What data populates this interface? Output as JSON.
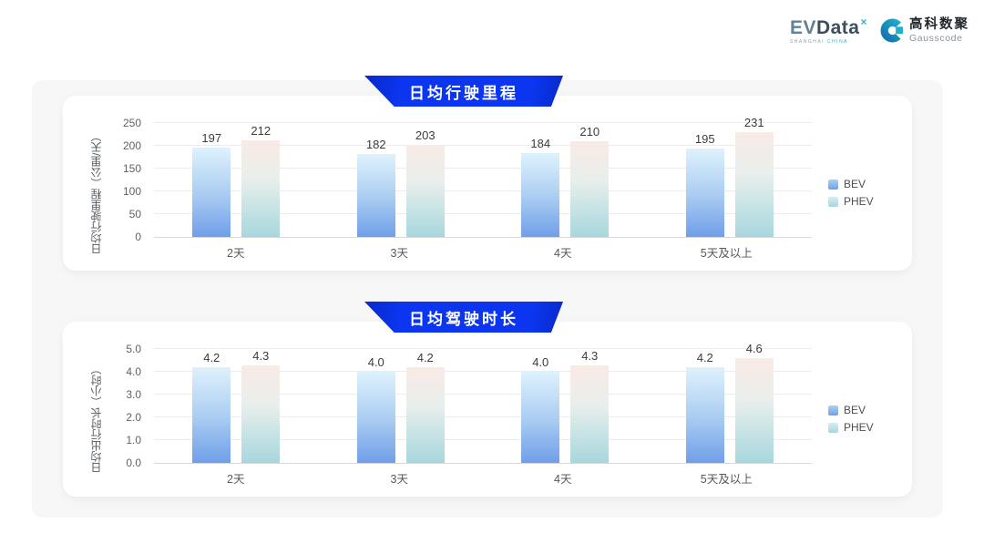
{
  "header": {
    "evdata": {
      "ev": "EV",
      "data": "Data",
      "sup": "×",
      "tagline_left": "SHANGHAI",
      "tagline_right": "CHINA"
    },
    "gausscode": {
      "cn": "高科数聚",
      "en": "Gausscode"
    }
  },
  "colors": {
    "banner_blue": "#0b35ee",
    "panel_gray": "#f7f7f8",
    "bev_gradient_top": "#def2fc",
    "bev_gradient_bottom": "#6f9fe9",
    "phev_gradient_top": "#f9eae5",
    "phev_gradient_bottom": "#a7d7de"
  },
  "chart_data": [
    {
      "type": "bar",
      "title": "日均行驶里程",
      "ylabel": "日均行驶里程（公里/天）",
      "xlabel": "",
      "categories": [
        "2天",
        "3天",
        "4天",
        "5天及以上"
      ],
      "series": [
        {
          "name": "BEV",
          "values": [
            197,
            182,
            184,
            195
          ],
          "labels": [
            "197",
            "182",
            "184",
            "195"
          ]
        },
        {
          "name": "PHEV",
          "values": [
            212,
            203,
            210,
            231
          ],
          "labels": [
            "212",
            "203",
            "210",
            "231"
          ]
        }
      ],
      "ylim": [
        0,
        250
      ],
      "yticks": [
        "0",
        "50",
        "100",
        "150",
        "200",
        "250"
      ],
      "grid": true,
      "legend_position": "right"
    },
    {
      "type": "bar",
      "title": "日均驾驶时长",
      "ylabel": "日均出行时长（小时）",
      "xlabel": "",
      "categories": [
        "2天",
        "3天",
        "4天",
        "5天及以上"
      ],
      "series": [
        {
          "name": "BEV",
          "values": [
            4.2,
            4.0,
            4.0,
            4.2
          ],
          "labels": [
            "4.2",
            "4.0",
            "4.0",
            "4.2"
          ]
        },
        {
          "name": "PHEV",
          "values": [
            4.3,
            4.2,
            4.3,
            4.6
          ],
          "labels": [
            "4.3",
            "4.2",
            "4.3",
            "4.6"
          ]
        }
      ],
      "ylim": [
        0,
        5
      ],
      "yticks": [
        "0.0",
        "1.0",
        "2.0",
        "3.0",
        "4.0",
        "5.0"
      ],
      "grid": true,
      "legend_position": "right"
    }
  ]
}
